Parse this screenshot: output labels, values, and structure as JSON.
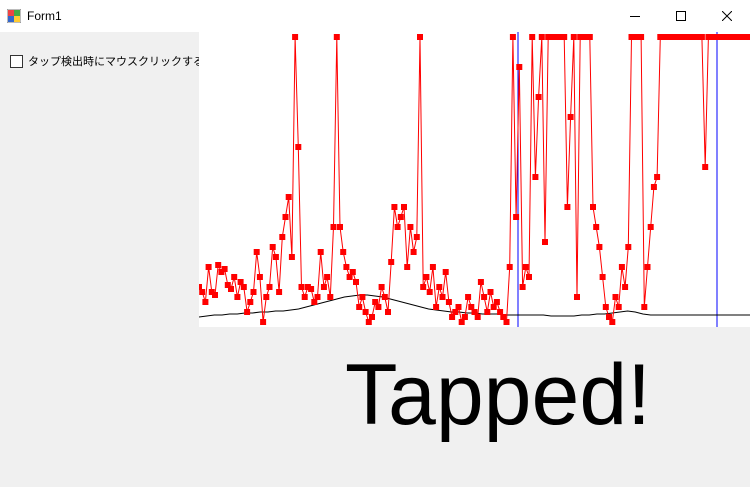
{
  "window": {
    "title": "Form1",
    "icons": {
      "app": "winforms-app-icon",
      "minimize": "minimize-icon",
      "maximize": "maximize-icon",
      "close": "close-icon"
    }
  },
  "controls": {
    "checkbox_label": "タップ検出時にマウスクリックする",
    "checkbox_checked": false
  },
  "status": {
    "tapped_text": "Tapped!"
  },
  "chart_data": {
    "type": "line",
    "grid": false,
    "colors": {
      "signal": "#ff0000",
      "baseline": "#000000",
      "markers": "#0000ff"
    },
    "xlim": [
      0,
      551
    ],
    "ylim": [
      0,
      295
    ],
    "series": [
      {
        "role": "signal",
        "marker": "square",
        "values": [
          40,
          35,
          25,
          60,
          35,
          32,
          62,
          55,
          58,
          42,
          38,
          50,
          30,
          45,
          40,
          15,
          25,
          35,
          75,
          50,
          5,
          30,
          40,
          80,
          70,
          35,
          90,
          110,
          130,
          70,
          290,
          180,
          40,
          30,
          40,
          38,
          25,
          30,
          75,
          40,
          50,
          30,
          100,
          290,
          100,
          75,
          60,
          50,
          55,
          45,
          20,
          30,
          15,
          5,
          10,
          25,
          20,
          40,
          30,
          15,
          65,
          120,
          100,
          110,
          120,
          60,
          100,
          75,
          90,
          290,
          40,
          50,
          35,
          60,
          20,
          40,
          30,
          55,
          25,
          10,
          15,
          20,
          5,
          10,
          30,
          20,
          15,
          10,
          45,
          30,
          15,
          35,
          20,
          25,
          15,
          10,
          5,
          60,
          290,
          110,
          260,
          40,
          60,
          50,
          290,
          150,
          230,
          290,
          85,
          290,
          290,
          290,
          290,
          290,
          290,
          120,
          210,
          290,
          30,
          290,
          290,
          290,
          290,
          120,
          100,
          80,
          50,
          20,
          10,
          5,
          30,
          20,
          60,
          40,
          80,
          290,
          290,
          290,
          290,
          20,
          60,
          100,
          140,
          150,
          290,
          290,
          290,
          290,
          290,
          290,
          290,
          290,
          290,
          290,
          290,
          290,
          290,
          290,
          160,
          290,
          290,
          290,
          290,
          290,
          290,
          290,
          290,
          290,
          290,
          290,
          290,
          290,
          290
        ]
      }
    ],
    "baseline": [
      10,
      11,
      12,
      12,
      13,
      13,
      14,
      14,
      15,
      15,
      16,
      16,
      17,
      18,
      20,
      22,
      24,
      26,
      28,
      30,
      31,
      32,
      32,
      31,
      30,
      28,
      26,
      24,
      22,
      20,
      18,
      17,
      16,
      15,
      15,
      14,
      14,
      13,
      13,
      13,
      12,
      12,
      12,
      12,
      12,
      12,
      11,
      11,
      11,
      11,
      12,
      12,
      13,
      13,
      14,
      15,
      16,
      15,
      13,
      12,
      12,
      12,
      12,
      12,
      12,
      12,
      12,
      12,
      12,
      12,
      12,
      12,
      12
    ],
    "vertical_markers_x": [
      319,
      518
    ]
  }
}
